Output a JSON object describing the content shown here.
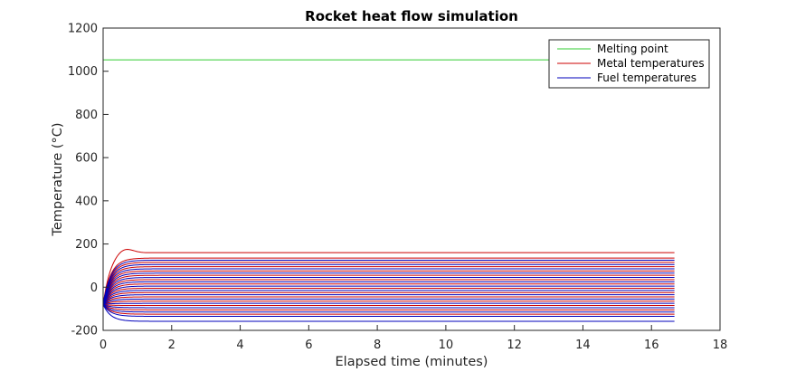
{
  "chart_data": {
    "type": "line",
    "title": "Rocket heat flow simulation",
    "xlabel": "Elapsed time (minutes)",
    "ylabel": "Temperature (°C)",
    "xlim": [
      0,
      18
    ],
    "ylim": [
      -200,
      1200
    ],
    "xticks": [
      "0",
      "2",
      "4",
      "6",
      "8",
      "10",
      "12",
      "14",
      "16",
      "18"
    ],
    "yticks": [
      "-200",
      "0",
      "200",
      "400",
      "600",
      "800",
      "1000",
      "1200"
    ],
    "grid": false,
    "legend_position": "top-right",
    "x_end": 16.67,
    "melting_point": {
      "name": "Melting point",
      "color": "#33cc33",
      "value": 1053
    },
    "series": [
      {
        "name": "Metal temperatures",
        "color": "#cc0000",
        "start": -80,
        "final_values": [
          160,
          135,
          115,
          95,
          75,
          55,
          35,
          15,
          -5,
          -25,
          -45,
          -65,
          -85,
          -105,
          -125
        ],
        "peak_value": 187,
        "peak_time": 0.6
      },
      {
        "name": "Fuel temperatures",
        "color": "#0000bb",
        "start": -80,
        "final_values": [
          125,
          105,
          85,
          65,
          45,
          25,
          5,
          -15,
          -35,
          -55,
          -75,
          -95,
          -115,
          -135,
          -158
        ]
      }
    ]
  }
}
